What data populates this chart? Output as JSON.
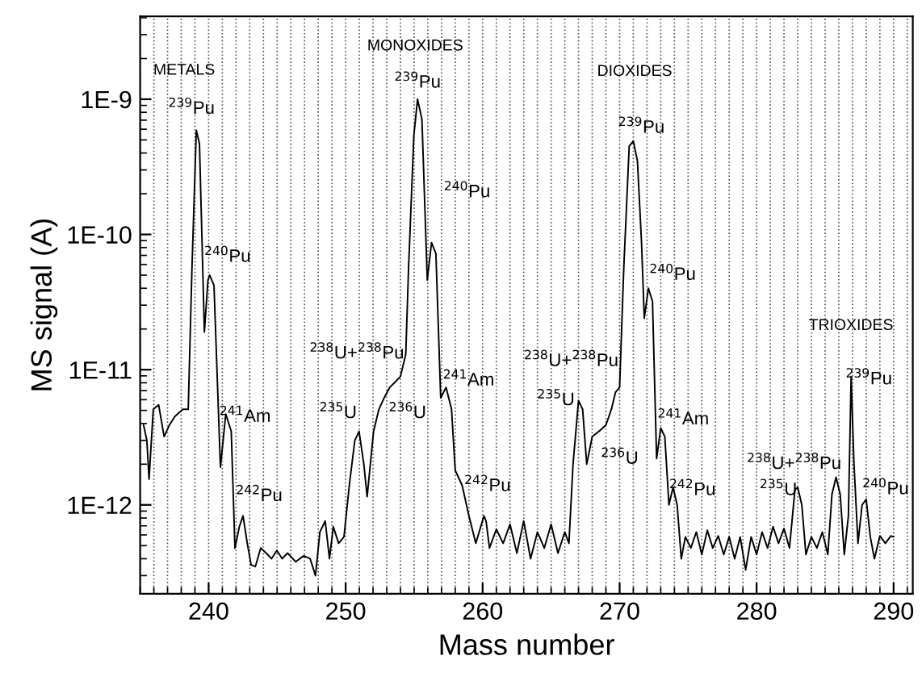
{
  "chart_data": {
    "type": "line",
    "xlabel": "Mass number",
    "ylabel": "MS signal (A)",
    "log": "y",
    "grid": "x",
    "line_style": "solid",
    "marker": "none",
    "xlim": [
      235,
      291.4
    ],
    "xticks": [
      240,
      250,
      260,
      270,
      280,
      290
    ],
    "ylim": [
      2.2e-13,
      4.1e-09
    ],
    "yticks": [
      {
        "value": 1e-12,
        "label": "1E-12"
      },
      {
        "value": 1e-11,
        "label": "1E-11"
      },
      {
        "value": 1e-10,
        "label": "1E-10"
      },
      {
        "value": 1e-09,
        "label": "1E-9"
      }
    ],
    "series": [
      {
        "color": "#000000",
        "x": [
          235.25,
          235.49,
          235.65,
          235.96,
          236.35,
          236.75,
          237.14,
          237.53,
          238.12,
          238.51,
          238.78,
          239.1,
          239.33,
          239.69,
          239.95,
          240.08,
          240.39,
          240.86,
          241.25,
          241.65,
          241.92,
          242.24,
          242.51,
          242.82,
          243.1,
          243.41,
          243.8,
          244.2,
          244.59,
          244.98,
          245.37,
          245.76,
          246.35,
          246.94,
          247.41,
          247.8,
          248.12,
          248.51,
          248.82,
          249.1,
          249.49,
          249.88,
          250.27,
          250.67,
          250.98,
          251.33,
          251.57,
          252.04,
          252.43,
          252.82,
          253.22,
          253.61,
          254.0,
          254.39,
          254.59,
          254.98,
          255.25,
          255.57,
          255.96,
          256.27,
          256.59,
          256.94,
          257.33,
          257.73,
          258.0,
          258.5,
          259.0,
          259.5,
          260.1,
          260.25,
          260.5,
          261.0,
          261.5,
          262.0,
          262.5,
          263.0,
          263.5,
          264.0,
          264.5,
          265.0,
          265.5,
          266.0,
          266.3,
          266.6,
          267.0,
          267.3,
          267.6,
          268.0,
          268.5,
          269.0,
          269.4,
          269.7,
          270.0,
          270.3,
          270.7,
          271.0,
          271.3,
          271.6,
          271.8,
          272.1,
          272.4,
          272.7,
          273.0,
          273.3,
          273.6,
          273.9,
          274.2,
          274.5,
          274.8,
          275.2,
          275.6,
          276.0,
          276.4,
          276.8,
          277.2,
          277.6,
          278.0,
          278.4,
          278.8,
          279.2,
          279.6,
          280.0,
          280.4,
          280.8,
          281.2,
          281.6,
          282.0,
          282.4,
          282.8,
          283.0,
          283.3,
          283.6,
          284.0,
          284.4,
          284.8,
          285.2,
          285.5,
          285.8,
          286.1,
          286.4,
          286.7,
          286.9,
          287.1,
          287.4,
          287.7,
          288.0,
          288.3,
          288.6,
          289.0,
          289.4,
          289.8,
          290.0
        ],
        "values": [
          3.9e-12,
          3e-12,
          1.55e-12,
          5.1e-12,
          5.5e-12,
          3.2e-12,
          3.9e-12,
          4.5e-12,
          5.1e-12,
          5.1e-12,
          5.5e-11,
          5.9e-10,
          4.7e-10,
          1.9e-11,
          4.6e-11,
          5e-11,
          4.2e-11,
          1.9e-12,
          4.7e-12,
          3.5e-12,
          4.8e-13,
          6.9e-13,
          8.3e-13,
          5.2e-13,
          3.6e-13,
          3.5e-13,
          4.8e-13,
          4.4e-13,
          4e-13,
          4.6e-13,
          4e-13,
          4.4e-13,
          3.8e-13,
          4.2e-13,
          4e-13,
          3e-13,
          6.3e-13,
          7.6e-13,
          4e-13,
          6.9e-13,
          5.2e-13,
          5.8e-13,
          1.4e-12,
          3e-12,
          3.5e-12,
          2e-12,
          1.15e-12,
          3.5e-12,
          5.1e-12,
          6.2e-12,
          7.4e-12,
          8.1e-12,
          8.9e-12,
          1.3e-11,
          5.5e-11,
          5.4e-10,
          1e-09,
          7.1e-10,
          4.6e-11,
          8.7e-11,
          7.2e-11,
          6.2e-12,
          7.4e-12,
          5.1e-12,
          1.8e-12,
          1.4e-12,
          8.3e-13,
          5.2e-13,
          8.3e-13,
          7.6e-13,
          4.8e-13,
          6.6e-13,
          5.2e-13,
          7.2e-13,
          4.4e-13,
          7.6e-13,
          4e-13,
          6.3e-13,
          4.8e-13,
          7.2e-13,
          4.4e-13,
          6.3e-13,
          5.2e-13,
          2e-12,
          5.9e-12,
          5.1e-12,
          2e-12,
          3.2e-12,
          3.5e-12,
          3.9e-12,
          5.1e-12,
          6.8e-12,
          7.4e-12,
          5.5e-11,
          4.5e-10,
          4.9e-10,
          3.5e-10,
          8.7e-11,
          2.4e-11,
          4e-11,
          3.2e-11,
          2.2e-12,
          3.7e-12,
          3.2e-12,
          1e-12,
          1.35e-12,
          1e-12,
          4e-13,
          5.8e-13,
          4.8e-13,
          6.3e-13,
          4.3e-13,
          6.5e-13,
          4.8e-13,
          5.9e-13,
          4.3e-13,
          5.8e-13,
          4e-13,
          5.8e-13,
          3.3e-13,
          5.8e-13,
          4.3e-13,
          6.3e-13,
          4.8e-13,
          6.9e-13,
          5.2e-13,
          6.7e-13,
          4.8e-13,
          1.3e-12,
          1.35e-12,
          1e-12,
          4.3e-13,
          5.8e-13,
          4.8e-13,
          6.3e-13,
          4.3e-13,
          1.2e-12,
          1.6e-12,
          1.2e-12,
          4.3e-13,
          8.3e-13,
          8.9e-12,
          2.1e-12,
          5.2e-13,
          1e-12,
          1.1e-12,
          5.8e-13,
          4e-13,
          5.9e-13,
          5.2e-13,
          5.9e-13,
          5.8e-13
        ]
      }
    ],
    "annotations": [
      "METALS",
      {
        "text": "$^{239}$Pu",
        "x": 239.1,
        "y": 5.9e-10
      },
      {
        "text": "$^{240}$Pu",
        "x": 240.08,
        "y": 5e-11
      },
      {
        "text": "$^{241}$Am",
        "x": 241.25,
        "y": 4.7e-12
      },
      {
        "text": "$^{242}$Pu",
        "x": 242.51,
        "y": 8.3e-13
      },
      {
        "text": "$^{238}$U+$^{238}$Pu",
        "x": 254.0,
        "y": 8.9e-12
      },
      {
        "text": "$^{235}$U",
        "x": 250.98,
        "y": 3.5e-12
      },
      {
        "text": "$^{236}$U",
        "x": 252.04,
        "y": 3.5e-12
      },
      "MONOXIDES",
      {
        "text": "$^{239}$Pu",
        "x": 255.25,
        "y": 1e-09
      },
      {
        "text": "$^{240}$Pu",
        "x": 256.27,
        "y": 8.7e-11
      },
      {
        "text": "$^{241}$Am",
        "x": 257.33,
        "y": 7.4e-12
      },
      {
        "text": "$^{242}$Pu",
        "x": 258.0,
        "y": 1.8e-12
      },
      "DIOXIDES",
      {
        "text": "$^{239}$Pu",
        "x": 271.0,
        "y": 4.9e-10
      },
      {
        "text": "$^{240}$Pu",
        "x": 272.1,
        "y": 4e-11
      },
      {
        "text": "$^{238}$U+$^{238}$Pu",
        "x": 270.0,
        "y": 7.4e-12
      },
      {
        "text": "$^{235}$U",
        "x": 267.0,
        "y": 5.9e-12
      },
      {
        "text": "$^{236}$U",
        "x": 268.0,
        "y": 3.2e-12
      },
      {
        "text": "$^{241}$Am",
        "x": 273.0,
        "y": 3.7e-12
      },
      {
        "text": "$^{242}$Pu",
        "x": 273.9,
        "y": 1.35e-12
      },
      "TRIOXIDES",
      {
        "text": "$^{239}$Pu",
        "x": 286.9,
        "y": 8.9e-12
      },
      {
        "text": "$^{238}$U+$^{238}$Pu",
        "x": 285.8,
        "y": 1.6e-12
      },
      {
        "text": "$^{235}$U",
        "x": 283.0,
        "y": 1.35e-12
      },
      {
        "text": "$^{240}$Pu",
        "x": 288.0,
        "y": 1.1e-12
      }
    ]
  }
}
